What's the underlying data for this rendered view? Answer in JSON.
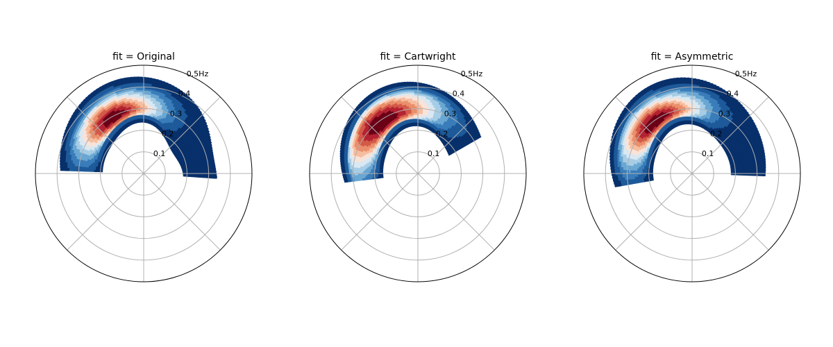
{
  "chart_data": [
    {
      "type": "polar-contour",
      "title": "fit = Original",
      "radial_ticks": [
        "0.1",
        "0.2",
        "0.3",
        "0.4",
        "0.5Hz"
      ],
      "rlim": [
        0,
        0.5
      ],
      "angular_gridlines_deg": [
        0,
        45,
        90,
        135,
        180,
        225,
        270,
        315
      ],
      "grid": true,
      "colormap": "RdBu_r",
      "peak": {
        "r": 0.29,
        "theta_deg": 118
      },
      "band": {
        "r_inner_min": 0.19,
        "r_outer_max": 0.46,
        "theta_range_deg": [
          -4,
          178
        ]
      }
    },
    {
      "type": "polar-contour",
      "title": "fit = Cartwright",
      "radial_ticks": [
        "0.1",
        "0.2",
        "0.3",
        "0.4",
        "0.5Hz"
      ],
      "rlim": [
        0,
        0.5
      ],
      "angular_gridlines_deg": [
        0,
        45,
        90,
        135,
        180,
        225,
        270,
        315
      ],
      "grid": true,
      "colormap": "RdBu_r",
      "peak": {
        "r": 0.29,
        "theta_deg": 125
      },
      "band": {
        "r_inner_min": 0.16,
        "r_outer_max": 0.43,
        "theta_range_deg": [
          30,
          187
        ]
      }
    },
    {
      "type": "polar-contour",
      "title": "fit = Asymmetric",
      "radial_ticks": [
        "0.1",
        "0.2",
        "0.3",
        "0.4",
        "0.5Hz"
      ],
      "rlim": [
        0,
        0.5
      ],
      "angular_gridlines_deg": [
        0,
        45,
        90,
        135,
        180,
        225,
        270,
        315
      ],
      "grid": true,
      "colormap": "RdBu_r",
      "peak": {
        "r": 0.29,
        "theta_deg": 125
      },
      "band": {
        "r_inner_min": 0.18,
        "r_outer_max": 0.45,
        "theta_range_deg": [
          -2,
          190
        ]
      }
    }
  ]
}
